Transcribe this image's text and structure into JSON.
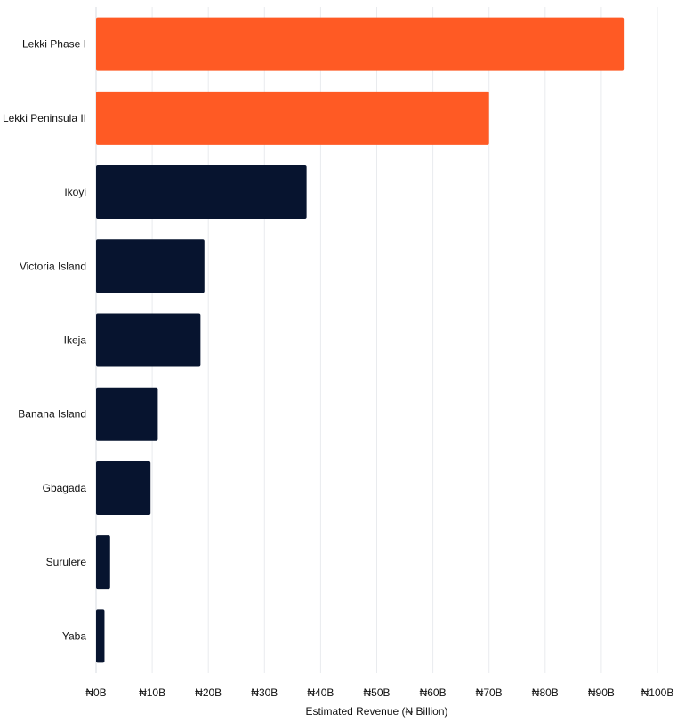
{
  "chart_data": {
    "type": "bar",
    "orientation": "horizontal",
    "categories": [
      "Lekki Phase I",
      "Lekki Peninsula II",
      "Ikoyi",
      "Victoria Island",
      "Ikeja",
      "Banana Island",
      "Gbagada",
      "Surulere",
      "Yaba"
    ],
    "values": [
      94,
      70,
      37.5,
      19.3,
      18.6,
      11,
      9.7,
      2.5,
      1.5
    ],
    "highlighted_categories": [
      "Lekki Phase I",
      "Lekki Peninsula II"
    ],
    "title": "",
    "xlabel": "Estimated Revenue (₦ Billion)",
    "ylabel": "",
    "xlim": [
      0,
      100
    ],
    "xticks": [
      0,
      10,
      20,
      30,
      40,
      50,
      60,
      70,
      80,
      90,
      100
    ],
    "xtick_labels": [
      "₦0B",
      "₦10B",
      "₦20B",
      "₦30B",
      "₦40B",
      "₦50B",
      "₦60B",
      "₦70B",
      "₦80B",
      "₦90B",
      "₦100B"
    ],
    "grid": true,
    "legend": "none",
    "colors": {
      "highlight": "#ff5a24",
      "default": "#07142f",
      "grid": "#e9ebee",
      "axis": "#d7dbe0",
      "text": "#111111"
    }
  }
}
